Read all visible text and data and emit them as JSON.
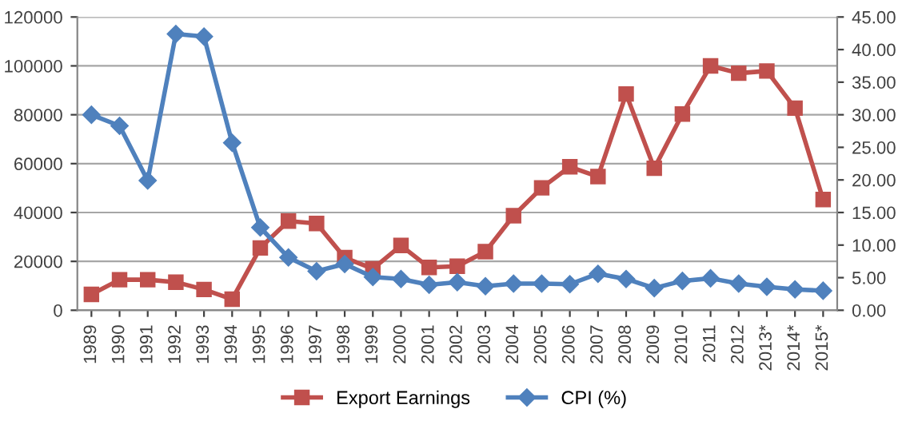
{
  "chart_data": {
    "type": "line",
    "categories": [
      "1989",
      "1990",
      "1991",
      "1992",
      "1993",
      "1994",
      "1995",
      "1996",
      "1997",
      "1998",
      "1999",
      "2000",
      "2001",
      "2002",
      "2003",
      "2004",
      "2005",
      "2006",
      "2007",
      "2008",
      "2009",
      "2010",
      "2011",
      "2012",
      "2013*",
      "2014*",
      "2015*"
    ],
    "series": [
      {
        "name": "Export Earnings",
        "color": "#c0504d",
        "marker": "square",
        "values": [
          6500,
          12500,
          12500,
          11500,
          8500,
          4500,
          25500,
          36500,
          35500,
          21500,
          17000,
          26500,
          17500,
          18000,
          24000,
          38700,
          50100,
          58700,
          54700,
          88500,
          58100,
          80300,
          100000,
          97000,
          97900,
          82700,
          45300
        ]
      },
      {
        "name": "CPI (%)",
        "color": "#4f81bd",
        "marker": "diamond",
        "axis": "y2",
        "values": [
          30.0,
          28.3,
          19.9,
          42.4,
          42.0,
          25.7,
          12.7,
          8.1,
          6.0,
          7.1,
          5.1,
          4.8,
          3.9,
          4.3,
          3.7,
          4.1,
          4.1,
          4.0,
          5.6,
          4.8,
          3.4,
          4.5,
          4.9,
          4.1,
          3.6,
          3.2,
          3.0
        ]
      }
    ],
    "ylim": [
      0,
      120000
    ],
    "yticks": [
      0,
      20000,
      40000,
      60000,
      80000,
      100000,
      120000
    ],
    "y2lim": [
      0,
      45
    ],
    "y2ticks": [
      {
        "value": 0,
        "label": "0.00"
      },
      {
        "value": 5,
        "label": "5.00"
      },
      {
        "value": 10,
        "label": "10.00"
      },
      {
        "value": 15,
        "label": "15.00"
      },
      {
        "value": 20,
        "label": "20.00"
      },
      {
        "value": 25,
        "label": "25.00"
      },
      {
        "value": 30,
        "label": "30.00"
      },
      {
        "value": 35,
        "label": "35.00"
      },
      {
        "value": 40,
        "label": "40.00"
      },
      {
        "value": 45,
        "label": "45.00"
      }
    ],
    "grid": "y",
    "legend": "bottom",
    "line_style": "solid"
  }
}
